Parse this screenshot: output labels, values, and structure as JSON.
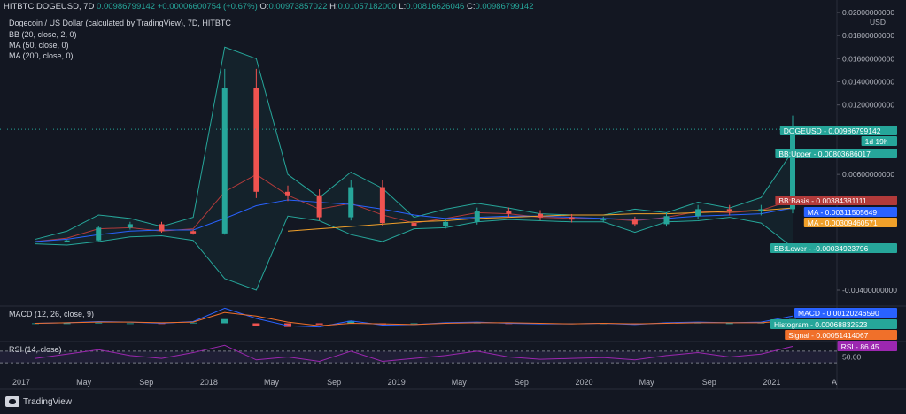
{
  "header": {
    "symbol": "HITBTC:DOGEUSD, 7D",
    "last": "0.00986799142",
    "change": "+0.00006600754 (+0.67%)",
    "o_label": "O:",
    "o_value": "0.00973857022",
    "h_label": "H:",
    "h_value": "0.01057182000",
    "l_label": "L:",
    "l_value": "0.00816626046",
    "c_label": "C:",
    "c_value": "0.00986799142"
  },
  "legend": {
    "title": "Dogecoin / US Dollar (calculated by TradingView), 7D, HITBTC",
    "bb": "BB (20, close, 2, 0)",
    "ma50": "MA (50, close, 0)",
    "ma200": "MA (200, close, 0)",
    "macd": "MACD (12, 26, close, 9)",
    "rsi": "RSI (14, close)"
  },
  "axis": {
    "currency": "USD",
    "price_ticks": [
      "0.02000000000",
      "0.01800000000",
      "0.01600000000",
      "0.01400000000",
      "0.01200000000",
      "0.00600000000",
      "-0.00400000000"
    ],
    "rsi_ticks": [
      "50.00"
    ],
    "time_ticks": [
      "2017",
      "May",
      "Sep",
      "2018",
      "May",
      "Sep",
      "2019",
      "May",
      "Sep",
      "2020",
      "May",
      "Sep",
      "2021",
      "A"
    ]
  },
  "badges": [
    {
      "text": "DOGEUSD - 0.00986799142",
      "color": "#26a69a"
    },
    {
      "text": "1d 19h",
      "color": "#26a69a"
    },
    {
      "text": "BB:Upper - 0.00803686017",
      "color": "#26a69a"
    },
    {
      "text": "BB:Basis - 0.00384381111",
      "color": "#b23a3a"
    },
    {
      "text": "MA - 0.00311505649",
      "color": "#2962ff"
    },
    {
      "text": "MA - 0.00309460571",
      "color": "#f0a02a"
    },
    {
      "text": "BB:Lower - -0.00034923796",
      "color": "#26a69a"
    },
    {
      "text": "MACD - 0.00120246590",
      "color": "#2962ff"
    },
    {
      "text": "Histogram - 0.00068832523",
      "color": "#26a69a"
    },
    {
      "text": "Signal - 0.00051414067",
      "color": "#f0702a"
    },
    {
      "text": "RSI - 86.45",
      "color": "#9c27b0"
    }
  ],
  "brand": "TradingView",
  "chart_data": {
    "type": "line",
    "title": "Dogecoin / US Dollar (calculated by TradingView), 7D, HITBTC",
    "ylabel": "USD",
    "ylim": [
      -0.0053,
      0.02
    ],
    "x": [
      "2017-01",
      "2017-03",
      "2017-05",
      "2017-07",
      "2017-09",
      "2017-11",
      "2018-01",
      "2018-03",
      "2018-05",
      "2018-07",
      "2018-09",
      "2018-11",
      "2019-01",
      "2019-03",
      "2019-05",
      "2019-07",
      "2019-09",
      "2019-11",
      "2020-01",
      "2020-03",
      "2020-05",
      "2020-07",
      "2020-09",
      "2020-11",
      "2021-01"
    ],
    "series": [
      {
        "values": [
          0.0002,
          0.0003,
          0.0014,
          0.0017,
          0.0011,
          0.0009,
          0.0135,
          0.0045,
          0.0042,
          0.0023,
          0.0049,
          0.0018,
          0.0015,
          0.0019,
          0.0028,
          0.0026,
          0.0023,
          0.0021,
          0.0021,
          0.0017,
          0.0024,
          0.003,
          0.0028,
          0.003,
          0.0099
        ]
      },
      {
        "name": "BB:Upper",
        "values": [
          0.0004,
          0.0011,
          0.0025,
          0.0022,
          0.0015,
          0.0023,
          0.017,
          0.016,
          0.006,
          0.004,
          0.0062,
          0.0048,
          0.0023,
          0.003,
          0.0035,
          0.0031,
          0.0026,
          0.0025,
          0.0025,
          0.003,
          0.0027,
          0.0036,
          0.0031,
          0.004,
          0.008
        ]
      },
      {
        "name": "BB:Basis",
        "values": [
          0.0002,
          0.0005,
          0.0013,
          0.0014,
          0.0011,
          0.0013,
          0.0045,
          0.006,
          0.0042,
          0.003,
          0.0035,
          0.0025,
          0.0018,
          0.0022,
          0.0027,
          0.0026,
          0.0023,
          0.0022,
          0.0022,
          0.002,
          0.0023,
          0.0028,
          0.0027,
          0.0029,
          0.0038
        ]
      },
      {
        "name": "BB:Lower",
        "values": [
          0.0,
          -0.0001,
          0.0002,
          0.0006,
          0.0007,
          0.0003,
          -0.003,
          -0.004,
          0.0024,
          0.002,
          0.0008,
          0.0002,
          0.0013,
          0.0014,
          0.0019,
          0.0021,
          0.002,
          0.0019,
          0.0019,
          0.001,
          0.0019,
          0.002,
          0.0023,
          0.0018,
          -0.0003
        ]
      },
      {
        "name": "MA (50)",
        "values": [
          0.0002,
          0.0004,
          0.0008,
          0.0011,
          0.0012,
          0.0012,
          0.0022,
          0.0033,
          0.0038,
          0.0036,
          0.0034,
          0.003,
          0.0025,
          0.0022,
          0.0023,
          0.0024,
          0.0024,
          0.0023,
          0.0022,
          0.0021,
          0.0022,
          0.0024,
          0.0025,
          0.0026,
          0.0031
        ]
      },
      {
        "name": "MA (200)",
        "values": [
          null,
          null,
          null,
          null,
          null,
          null,
          null,
          null,
          0.0011,
          0.0013,
          0.0015,
          0.0017,
          0.0019,
          0.002,
          0.0022,
          0.0023,
          0.0024,
          0.0025,
          0.0025,
          0.0026,
          0.0026,
          0.0027,
          0.0028,
          0.0029,
          0.0031
        ]
      }
    ],
    "macd": {
      "macd": [
        0.0,
        0.0001,
        0.0003,
        0.0002,
        0.0,
        0.0003,
        0.0025,
        0.0008,
        -0.0004,
        -0.0006,
        0.0004,
        -0.0003,
        -0.0002,
        0.0001,
        0.0002,
        0.0,
        -0.0001,
        -0.0001,
        0.0,
        -0.0002,
        0.0001,
        0.0002,
        0.0001,
        0.0002,
        0.0012
      ],
      "signal": [
        0.0,
        0.0001,
        0.0002,
        0.0002,
        0.0001,
        0.0002,
        0.0018,
        0.0012,
        0.0002,
        -0.0004,
        0.0,
        -0.0001,
        -0.0002,
        0.0,
        0.0001,
        0.0001,
        0.0,
        -0.0001,
        0.0,
        -0.0001,
        0.0,
        0.0001,
        0.0001,
        0.0001,
        0.0005
      ],
      "histogram": [
        0.0,
        0.0,
        0.0001,
        0.0,
        -0.0001,
        0.0001,
        0.0007,
        -0.0004,
        -0.0006,
        -0.0002,
        0.0004,
        -0.0002,
        0.0,
        0.0001,
        0.0001,
        -0.0001,
        -0.0001,
        0.0,
        0.0,
        -0.0001,
        0.0001,
        0.0001,
        0.0,
        0.0001,
        0.0007
      ]
    },
    "rsi": [
      45,
      60,
      75,
      55,
      45,
      65,
      90,
      40,
      50,
      35,
      70,
      35,
      45,
      55,
      70,
      50,
      42,
      45,
      48,
      40,
      55,
      65,
      50,
      60,
      86.45
    ]
  }
}
